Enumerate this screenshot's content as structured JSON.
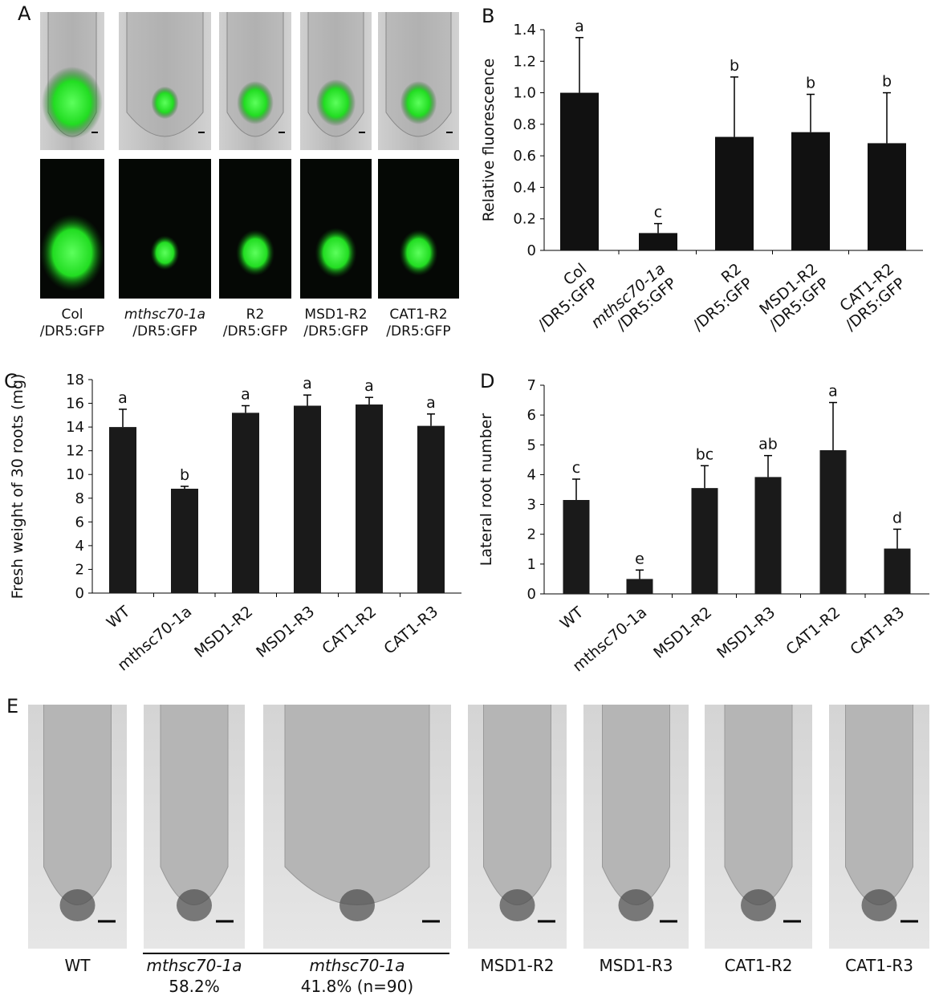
{
  "panel_a": {
    "label": "A",
    "captions": [
      [
        "Col",
        "/DR5:GFP"
      ],
      [
        "mthsc70-1a",
        "/DR5:GFP"
      ],
      [
        "R2",
        "/DR5:GFP"
      ],
      [
        "MSD1-R2",
        "/DR5:GFP"
      ],
      [
        "CAT1-R2",
        "/DR5:GFP"
      ]
    ]
  },
  "panel_e": {
    "label": "E",
    "captions": [
      [
        "WT"
      ],
      [
        "mthsc70-1a",
        "58.2%"
      ],
      [
        "mthsc70-1a",
        "41.8% (n=90)"
      ],
      [
        "MSD1-R2"
      ],
      [
        "MSD1-R3"
      ],
      [
        "CAT1-R2"
      ],
      [
        "CAT1-R3"
      ]
    ]
  },
  "chart_data": [
    {
      "panel": "B",
      "type": "bar",
      "y_label": "Relative fluorescence",
      "categories": [
        [
          "Col",
          "/DR5:GFP"
        ],
        [
          "mthsc70-1a",
          "/DR5:GFP"
        ],
        [
          "R2",
          "/DR5:GFP"
        ],
        [
          "MSD1-R2",
          "/DR5:GFP"
        ],
        [
          "CAT1-R2",
          "/DR5:GFP"
        ]
      ],
      "values": [
        1.0,
        0.11,
        0.72,
        0.75,
        0.68
      ],
      "errors": [
        0.35,
        0.06,
        0.38,
        0.24,
        0.32
      ],
      "annotations": [
        "a",
        "c",
        "b",
        "b",
        "b"
      ],
      "color": "#111111",
      "ylim": [
        0,
        1.4
      ],
      "yticks": [
        0,
        0.2,
        0.4,
        0.6,
        0.8,
        {
          "value": 1,
          "label": "1.0"
        },
        1.2,
        1.4
      ]
    },
    {
      "panel": "C",
      "type": "bar",
      "y_label": "Fresh weight of 30 roots (mg)",
      "categories": [
        "WT",
        "mthsc70-1a",
        "MSD1-R2",
        "MSD1-R3",
        "CAT1-R2",
        "CAT1-R3"
      ],
      "values": [
        14.0,
        8.8,
        15.2,
        15.8,
        15.9,
        14.1
      ],
      "errors": [
        1.5,
        0.2,
        0.6,
        0.9,
        0.6,
        1.0
      ],
      "annotations": [
        "a",
        "b",
        "a",
        "a",
        "a",
        "a"
      ],
      "color": "#1a1a1a",
      "ylim": [
        0,
        18
      ],
      "yticks": [
        0,
        2,
        4,
        6,
        8,
        10,
        12,
        14,
        16,
        18
      ]
    },
    {
      "panel": "D",
      "type": "bar",
      "y_label": "Lateral root number",
      "categories": [
        "WT",
        "mthsc70-1a",
        "MSD1-R2",
        "MSD1-R3",
        "CAT1-R2",
        "CAT1-R3"
      ],
      "values": [
        3.15,
        0.5,
        3.55,
        3.92,
        4.82,
        1.52
      ],
      "errors": [
        0.7,
        0.3,
        0.75,
        0.72,
        1.6,
        0.65
      ],
      "annotations": [
        "c",
        "e",
        "bc",
        "ab",
        "a",
        "d"
      ],
      "color": "#1a1a1a",
      "ylim": [
        0,
        7
      ],
      "yticks": [
        0,
        1,
        2,
        3,
        4,
        5,
        6,
        7
      ]
    }
  ]
}
